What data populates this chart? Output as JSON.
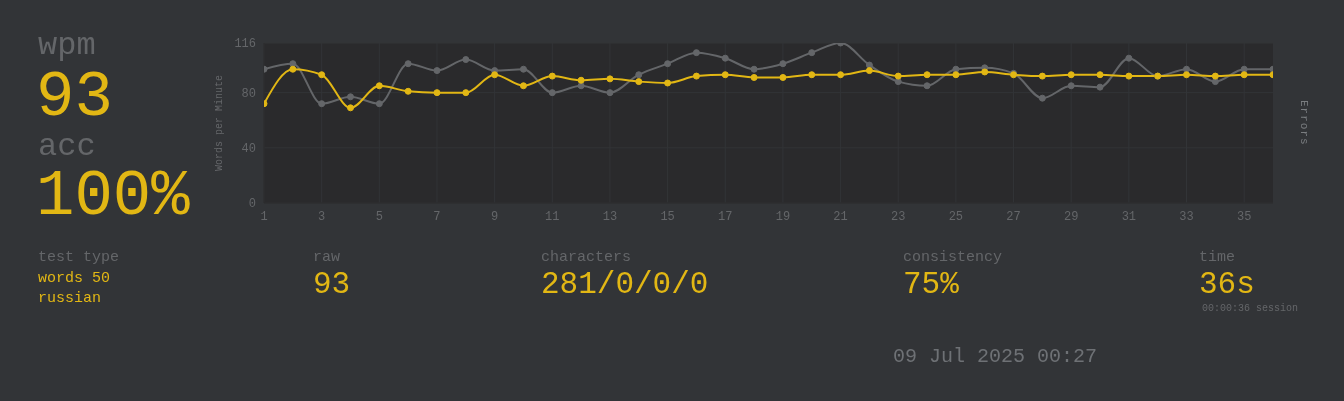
{
  "chart_data": {
    "type": "line",
    "xlabel": null,
    "ylabel": "Words per Minute",
    "y2label": "Errors",
    "x": [
      1,
      2,
      3,
      4,
      5,
      6,
      7,
      8,
      9,
      10,
      11,
      12,
      13,
      14,
      15,
      16,
      17,
      18,
      19,
      20,
      21,
      22,
      23,
      24,
      25,
      26,
      27,
      28,
      29,
      30,
      31,
      32,
      33,
      34,
      35,
      36
    ],
    "series": [
      {
        "color": "#646669",
        "values": [
          97,
          101,
          72,
          77,
          72,
          101,
          96,
          104,
          96,
          97,
          80,
          85,
          80,
          93,
          101,
          109,
          105,
          97,
          101,
          109,
          116,
          100,
          88,
          85,
          97,
          98,
          94,
          76,
          85,
          84,
          105,
          92,
          97,
          88,
          97,
          97
        ]
      },
      {
        "color": "#e2b714",
        "values": [
          72,
          97,
          93,
          69,
          85,
          81,
          80,
          80,
          93,
          85,
          92,
          89,
          90,
          88,
          87,
          92,
          93,
          91,
          91,
          93,
          93,
          96,
          92,
          93,
          93,
          95,
          93,
          92,
          93,
          93,
          92,
          92,
          93,
          92,
          93,
          93
        ]
      }
    ],
    "xlim": [
      1,
      36
    ],
    "xticks": [
      1,
      3,
      5,
      7,
      9,
      11,
      13,
      15,
      17,
      19,
      21,
      23,
      25,
      27,
      29,
      31,
      33,
      35
    ],
    "ylim": [
      0,
      116
    ],
    "yticks": [
      0,
      40,
      80,
      116
    ],
    "grid": true,
    "legend": false,
    "marker": "circle",
    "line_style": "solid",
    "annotations": [
      "wpm",
      "93",
      "acc",
      "100%",
      "test type",
      "words 50",
      "russian",
      "raw",
      "93",
      "characters",
      "281/0/0/0",
      "consistency",
      "75%",
      "time",
      "36s",
      "00:00:36 session",
      "09 Jul 2025 00:27"
    ]
  }
}
